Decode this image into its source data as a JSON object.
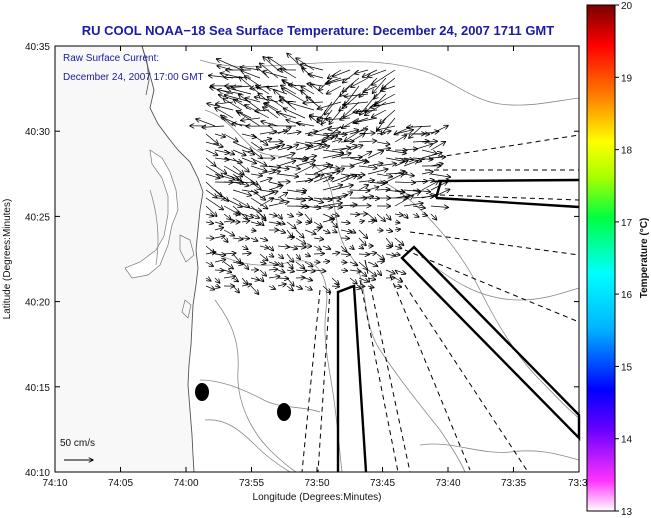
{
  "title": "RU COOL  NOAA−18  Sea Surface Temperature:  December 24, 2007 1711 GMT",
  "current_label": {
    "line1": "Raw Surface Current:",
    "line2": "December 24, 2007 17:00 GMT"
  },
  "scale_label": "50 cm/s",
  "xlabel": "Longitude (Degrees:Minutes)",
  "ylabel": "Latitude (Degrees:Minutes)",
  "x_ticks": [
    "74:10",
    "74:05",
    "74:00",
    "73:55",
    "73:50",
    "73:45",
    "73:40",
    "73:35",
    "73:3"
  ],
  "y_ticks": [
    "40:35",
    "40:30",
    "40:25",
    "40:20",
    "40:15",
    "40:10"
  ],
  "colorbar": {
    "label": "Temperature (°C)",
    "ticks": [
      "20",
      "19",
      "18",
      "17",
      "16",
      "15",
      "14",
      "13"
    ],
    "min": 13,
    "max": 20,
    "colors": [
      "#ffffff",
      "#ff00ff",
      "#0000ff",
      "#00ffff",
      "#00ff00",
      "#ffff00",
      "#ff0000",
      "#800000"
    ]
  },
  "colors": {
    "title": "#1a1aa6",
    "land": "#f7f7f7",
    "contour": "#888888",
    "vectors": "#000000"
  }
}
